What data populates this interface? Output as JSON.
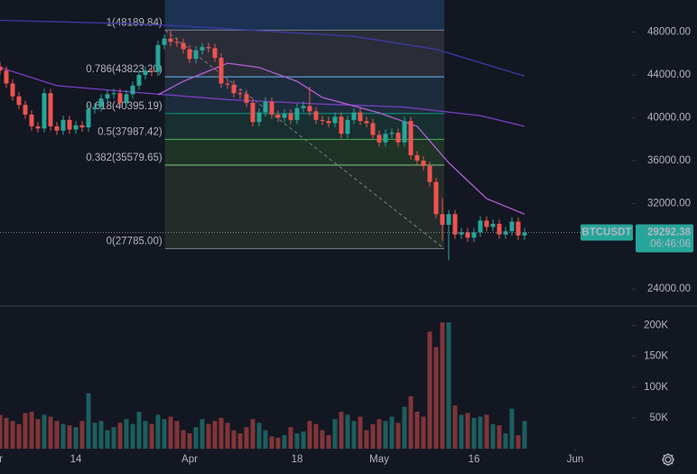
{
  "chart_data": {
    "type": "candlestick",
    "symbol": "BTCUSDT",
    "countdown": "06:46:06",
    "up_color": "#26a69a",
    "down_color": "#ef5350",
    "xlim": [
      0,
      100
    ],
    "xticks": [
      {
        "value": -1,
        "label": "Mar"
      },
      {
        "value": 12,
        "label": "14"
      },
      {
        "value": 30,
        "label": "Apr"
      },
      {
        "value": 47,
        "label": "18"
      },
      {
        "value": 60,
        "label": "May"
      },
      {
        "value": 75,
        "label": "16"
      },
      {
        "value": 91,
        "label": "Jun"
      }
    ],
    "ylim": [
      22500,
      51000
    ],
    "yticks": [
      {
        "value": 48000,
        "label": "48000.00"
      },
      {
        "value": 44000,
        "label": "44000.00"
      },
      {
        "value": 40000,
        "label": "40000.00"
      },
      {
        "value": 36000,
        "label": "36000.00"
      },
      {
        "value": 32000,
        "label": "32000.00"
      },
      {
        "value": 24000,
        "label": "24000.00"
      }
    ],
    "open": [
      44800,
      44400,
      43200,
      42000,
      41200,
      40300,
      39200,
      39000,
      42300,
      39200,
      38800,
      39800,
      38900,
      39300,
      39100,
      40800,
      41000,
      41800,
      42200,
      42300,
      41400,
      42200,
      43000,
      44000,
      44400,
      44300,
      46800,
      47400,
      47100,
      47000,
      46400,
      45500,
      46300,
      46600,
      46500,
      45600,
      43200,
      43100,
      42300,
      42200,
      41400,
      39600,
      40500,
      41500,
      40300,
      40000,
      40400,
      39800,
      40900,
      41100,
      40600,
      39800,
      39700,
      39500,
      40100,
      38500,
      39800,
      40500,
      39700,
      39500,
      38400,
      37700,
      38500,
      38600,
      37700,
      39700,
      36500,
      36000,
      35500,
      34000,
      31000,
      30000,
      31000,
      29100,
      29300,
      28800,
      29300,
      30400,
      29800,
      30100,
      29100,
      29400,
      30300,
      29000
    ],
    "high": [
      45200,
      44800,
      43600,
      42400,
      41600,
      40700,
      39600,
      42700,
      42700,
      39600,
      40200,
      40200,
      39700,
      39700,
      41200,
      41400,
      42200,
      42600,
      42700,
      42700,
      42600,
      43400,
      44400,
      44800,
      44800,
      47200,
      47800,
      48189.84,
      47500,
      47400,
      46800,
      46700,
      47000,
      47000,
      46900,
      46000,
      43600,
      43500,
      42700,
      42600,
      41800,
      40900,
      41900,
      41900,
      40700,
      40800,
      40800,
      41300,
      41500,
      42900,
      41000,
      40200,
      40100,
      40500,
      40500,
      40200,
      40900,
      40900,
      40100,
      39900,
      38800,
      38900,
      39000,
      39000,
      40100,
      40100,
      36900,
      36400,
      35900,
      34400,
      32500,
      31400,
      31400,
      29700,
      29700,
      29700,
      30800,
      30800,
      30500,
      30500,
      29800,
      30700,
      30700,
      29700
    ],
    "low": [
      44000,
      42800,
      41600,
      40800,
      39900,
      38800,
      38600,
      38600,
      38800,
      38400,
      38400,
      38500,
      38500,
      38700,
      38700,
      40400,
      40600,
      41400,
      41800,
      41000,
      41000,
      41800,
      42600,
      43600,
      43900,
      43900,
      46400,
      46700,
      46600,
      46000,
      45100,
      45100,
      45900,
      46100,
      45200,
      42800,
      42700,
      41900,
      41800,
      41000,
      39200,
      39200,
      40100,
      39900,
      39600,
      39600,
      39400,
      39400,
      40500,
      40200,
      39400,
      39300,
      39100,
      39100,
      38100,
      38100,
      39400,
      39300,
      39100,
      38000,
      37300,
      37300,
      38100,
      37300,
      37300,
      36100,
      35600,
      35100,
      33600,
      30600,
      28500,
      26700,
      28700,
      28700,
      28400,
      28400,
      28900,
      29400,
      29400,
      28700,
      28700,
      29000,
      28600,
      28600
    ],
    "close": [
      44400,
      43200,
      42000,
      41200,
      40300,
      39200,
      39000,
      42300,
      39200,
      38800,
      39800,
      38900,
      39300,
      39100,
      40800,
      41000,
      41800,
      42200,
      42300,
      41400,
      42200,
      43000,
      44000,
      44400,
      44300,
      46800,
      47400,
      47100,
      47000,
      46400,
      45500,
      46300,
      46600,
      46500,
      45600,
      43200,
      43100,
      42300,
      42200,
      41400,
      39600,
      40500,
      41500,
      40300,
      40000,
      40400,
      39800,
      40900,
      41100,
      40600,
      39800,
      39700,
      39500,
      40100,
      38500,
      39800,
      40500,
      39700,
      39500,
      38400,
      37700,
      38500,
      38600,
      37700,
      39700,
      36500,
      36000,
      35500,
      34000,
      31000,
      30000,
      31000,
      29100,
      29300,
      28800,
      29300,
      30400,
      29800,
      30100,
      29100,
      29400,
      30300,
      29000,
      29292.38
    ],
    "volume": {
      "values": [
        55000,
        50000,
        45000,
        40000,
        58000,
        60000,
        48000,
        55000,
        52000,
        45000,
        40000,
        38000,
        35000,
        45000,
        90000,
        42000,
        45000,
        30000,
        35000,
        42000,
        48000,
        40000,
        60000,
        45000,
        40000,
        55000,
        48000,
        52000,
        45000,
        30000,
        25000,
        35000,
        48000,
        40000,
        45000,
        50000,
        42000,
        30000,
        25000,
        35000,
        48000,
        42000,
        30000,
        20000,
        18000,
        22000,
        35000,
        25000,
        28000,
        45000,
        40000,
        30000,
        22000,
        48000,
        60000,
        55000,
        45000,
        52000,
        30000,
        40000,
        48000,
        45000,
        52000,
        42000,
        68000,
        85000,
        60000,
        52000,
        190000,
        165000,
        205000,
        205000,
        70000,
        55000,
        58000,
        50000,
        52000,
        55000,
        40000,
        38000,
        25000,
        65000,
        22000,
        45000
      ],
      "ylim": [
        0,
        230000
      ],
      "yticks": [
        {
          "value": 200000,
          "label": "200K"
        },
        {
          "value": 150000,
          "label": "150K"
        },
        {
          "value": 100000,
          "label": "100K"
        },
        {
          "value": 50000,
          "label": "50K"
        }
      ],
      "opacity": 0.5
    },
    "moving_averages": [
      {
        "color": "#3d3aa6",
        "x": [
          0,
          20,
          28,
          56,
          69,
          83
        ],
        "values": [
          49100,
          48800,
          48600,
          47600,
          46400,
          43900
        ]
      },
      {
        "color": "#7a3fc4",
        "x": [
          0,
          9,
          21,
          36,
          50,
          64,
          76,
          83
        ],
        "values": [
          44700,
          43000,
          42400,
          41700,
          41300,
          41000,
          40200,
          39200
        ]
      },
      {
        "color": "#b35fd6",
        "x": [
          25,
          29,
          36,
          41,
          47,
          51,
          60,
          66,
          71,
          77,
          83
        ],
        "values": [
          42150,
          43400,
          45100,
          44700,
          43400,
          41900,
          40460,
          39200,
          35800,
          32450,
          31000
        ]
      }
    ],
    "fib": {
      "x": [
        26.1,
        70.3
      ],
      "prices": [
        48189.84,
        43823.2,
        40395.19,
        37987.42,
        35579.65,
        27785
      ],
      "labels": [
        "1(48189.84)",
        "0.786(43823.20)",
        "0.618(40395.19)",
        "0.5(37987.42)",
        "0.382(35579.65)",
        "0(27785.00)"
      ],
      "line_colors": [
        "#787b86",
        "#64b5f6",
        "#089981",
        "#4caf50",
        "#81c784",
        "#787b86"
      ],
      "fill_colors": [
        "#1c3252",
        "#2a2d38",
        "#1d2c3c",
        "#17302f",
        "#1f3327",
        "#232c28"
      ]
    }
  }
}
